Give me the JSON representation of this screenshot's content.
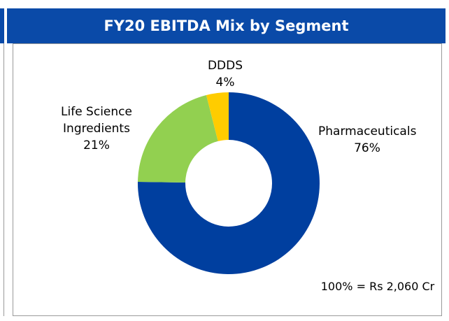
{
  "chart_data": {
    "type": "pie",
    "donut": true,
    "title": "FY20 EBITDA Mix by Segment",
    "categories": [
      "Pharmaceuticals",
      "Life Science Ingredients",
      "DDDS"
    ],
    "values": [
      76,
      21,
      4
    ],
    "value_labels": [
      "76%",
      "21%",
      "4%"
    ],
    "colors": [
      "#003f9f",
      "#92d050",
      "#ffcc00"
    ],
    "annotation": "100% = Rs 2,060 Cr"
  }
}
